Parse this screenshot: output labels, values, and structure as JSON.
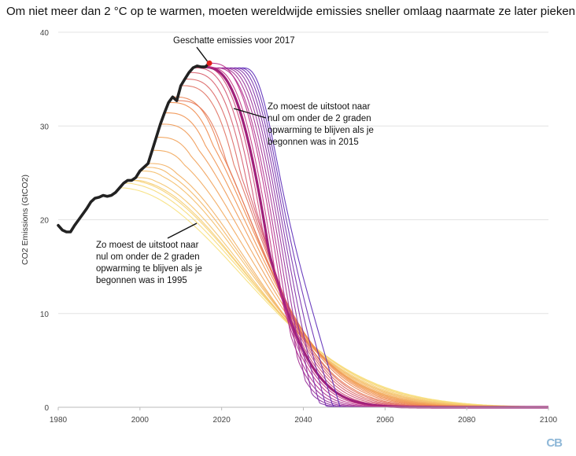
{
  "title": "Om niet meer dan 2 °C op te warmen, moeten wereldwijde emissies sneller omlaag naarmate ze later pieken.",
  "logo_text": "CB",
  "annotations": {
    "estimate_2017": "Geschatte emissies voor 2017",
    "start_2015": [
      "Zo moest de uitstoot naar",
      "nul om onder de 2 graden",
      "opwarming te blijven als je",
      "begonnen was in 2015"
    ],
    "start_1995": [
      "Zo moest de uitstoot naar",
      "nul om onder de 2 graden",
      "opwarming te blijven als je",
      "begonnen was in 1995"
    ]
  },
  "colors": {
    "historical": "#222222",
    "estimate_marker": "#e0201b",
    "early_start": "#f7e07a",
    "mid_start": "#ef8a4a",
    "late_start": "#c02f86",
    "latest_start": "#5b2ab8",
    "highlight_2015": "#a0207a"
  },
  "chart_data": {
    "type": "line",
    "xlabel": "",
    "ylabel": "CO2 Emissions (GtCO2)",
    "xlim": [
      1980,
      2100
    ],
    "ylim": [
      0,
      40
    ],
    "x_ticks": [
      1980,
      2000,
      2020,
      2040,
      2060,
      2080,
      2100
    ],
    "y_ticks": [
      0,
      10,
      20,
      30,
      40
    ],
    "grid": "horizontal",
    "historical": {
      "x": [
        1980,
        1981,
        1982,
        1983,
        1984,
        1985,
        1986,
        1987,
        1988,
        1989,
        1990,
        1991,
        1992,
        1993,
        1994,
        1995,
        1996,
        1997,
        1998,
        1999,
        2000,
        2001,
        2002,
        2003,
        2004,
        2005,
        2006,
        2007,
        2008,
        2009,
        2010,
        2011,
        2012,
        2013,
        2014,
        2015,
        2016,
        2017
      ],
      "y": [
        19.4,
        18.9,
        18.7,
        18.7,
        19.4,
        20.0,
        20.6,
        21.2,
        21.9,
        22.3,
        22.4,
        22.6,
        22.5,
        22.6,
        22.9,
        23.4,
        23.9,
        24.2,
        24.2,
        24.5,
        25.2,
        25.6,
        26.0,
        27.4,
        28.8,
        30.2,
        31.4,
        32.5,
        33.1,
        32.7,
        34.3,
        35.0,
        35.7,
        36.2,
        36.4,
        36.3,
        36.3,
        36.7
      ]
    },
    "estimate_2017": {
      "x": 2017,
      "y": 36.7
    },
    "pathways": {
      "start_years": [
        1995,
        1996,
        1997,
        1998,
        1999,
        2000,
        2001,
        2002,
        2003,
        2004,
        2005,
        2006,
        2007,
        2008,
        2009,
        2010,
        2011,
        2012,
        2013,
        2014,
        2015,
        2016,
        2017,
        2018,
        2019,
        2020,
        2021,
        2022,
        2023,
        2024,
        2025
      ],
      "peak_values": [
        23.4,
        23.9,
        24.2,
        24.2,
        24.5,
        25.2,
        25.6,
        26.0,
        27.4,
        28.8,
        30.2,
        31.4,
        32.5,
        33.1,
        32.7,
        34.3,
        35.0,
        35.7,
        36.2,
        36.4,
        36.3,
        36.3,
        36.7,
        36.2,
        36.2,
        36.2,
        36.2,
        36.2,
        36.2,
        36.2,
        36.2
      ],
      "highlighted": [
        1995,
        2015
      ]
    }
  }
}
